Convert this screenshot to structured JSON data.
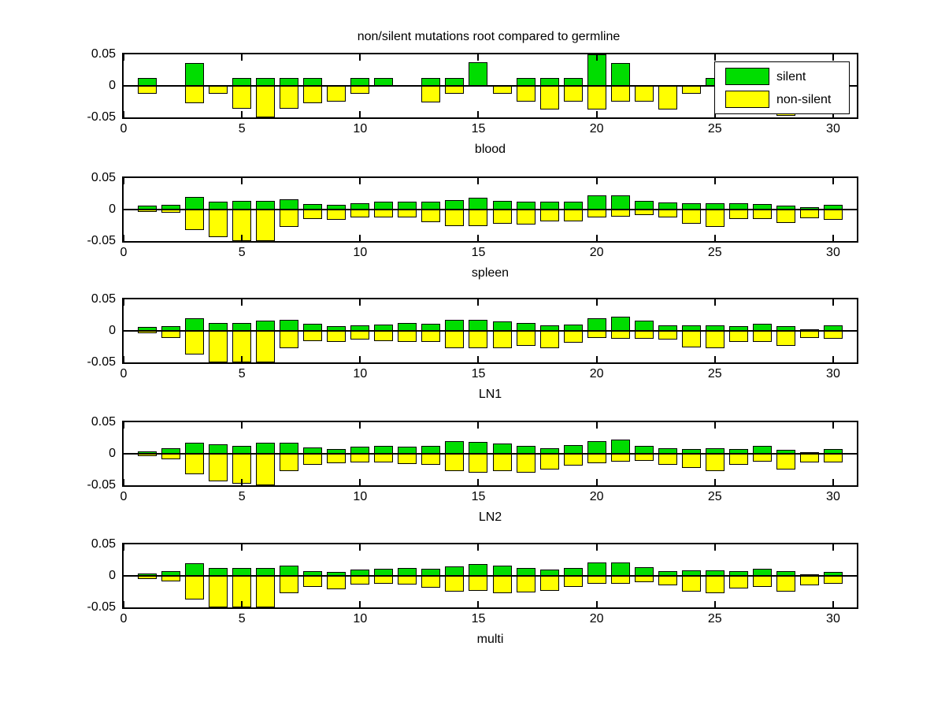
{
  "figure": {
    "title": "non/silent mutations root compared to germline",
    "background": "#ffffff"
  },
  "colors": {
    "silent": "#00dd00",
    "non_silent": "#ffff00",
    "axis": "#000000"
  },
  "legend": {
    "items": [
      {
        "label": "silent",
        "color": "#00dd00"
      },
      {
        "label": "non-silent",
        "color": "#ffff00"
      }
    ]
  },
  "chart_data": [
    {
      "type": "bar",
      "title": "non/silent mutations root compared to germline",
      "xlabel": "blood",
      "ylim": [
        -0.05,
        0.05
      ],
      "yticks": [
        0.05,
        0,
        -0.05
      ],
      "yticklabels": [
        "0.05",
        "0",
        "-0.05"
      ],
      "xticks": [
        0,
        5,
        10,
        15,
        20,
        25,
        30
      ],
      "xticklabels": [
        "0",
        "5",
        "10",
        "15",
        "20",
        "25",
        "30"
      ],
      "x_start": 1,
      "legend_visible": true,
      "series": [
        {
          "name": "silent",
          "values": [
            0.012,
            0,
            0.036,
            0,
            0.012,
            0.012,
            0.012,
            0.012,
            0,
            0.012,
            0.012,
            0,
            0.012,
            0.012,
            0.037,
            0,
            0.012,
            0.012,
            0.012,
            0.05,
            0.036,
            0,
            0,
            0,
            0.012,
            0,
            0.012,
            0,
            0,
            0.012
          ]
        },
        {
          "name": "non-silent",
          "values": [
            -0.013,
            0,
            -0.027,
            -0.013,
            -0.036,
            -0.05,
            -0.036,
            -0.027,
            -0.025,
            -0.012,
            0,
            0,
            -0.026,
            -0.013,
            0,
            -0.013,
            -0.025,
            -0.037,
            -0.025,
            -0.037,
            -0.025,
            -0.025,
            -0.037,
            -0.013,
            0,
            -0.025,
            -0.013,
            -0.048,
            -0.013,
            0
          ]
        }
      ]
    },
    {
      "type": "bar",
      "xlabel": "spleen",
      "ylim": [
        -0.05,
        0.05
      ],
      "yticks": [
        0.05,
        0,
        -0.05
      ],
      "yticklabels": [
        "0.05",
        "0",
        "-0.05"
      ],
      "xticks": [
        0,
        5,
        10,
        15,
        20,
        25,
        30
      ],
      "xticklabels": [
        "0",
        "5",
        "10",
        "15",
        "20",
        "25",
        "30"
      ],
      "x_start": 1,
      "legend_visible": false,
      "series": [
        {
          "name": "silent",
          "values": [
            0.006,
            0.008,
            0.02,
            0.012,
            0.014,
            0.014,
            0.016,
            0.009,
            0.008,
            0.01,
            0.012,
            0.012,
            0.012,
            0.015,
            0.019,
            0.014,
            0.012,
            0.012,
            0.013,
            0.022,
            0.023,
            0.014,
            0.011,
            0.01,
            0.01,
            0.01,
            0.009,
            0.006,
            0.004,
            0.008
          ]
        },
        {
          "name": "non-silent",
          "values": [
            -0.004,
            -0.005,
            -0.033,
            -0.044,
            -0.05,
            -0.05,
            -0.027,
            -0.015,
            -0.016,
            -0.012,
            -0.013,
            -0.012,
            -0.02,
            -0.026,
            -0.026,
            -0.022,
            -0.024,
            -0.019,
            -0.019,
            -0.012,
            -0.011,
            -0.009,
            -0.013,
            -0.023,
            -0.027,
            -0.015,
            -0.015,
            -0.021,
            -0.014,
            -0.016
          ]
        }
      ]
    },
    {
      "type": "bar",
      "xlabel": "LN1",
      "ylim": [
        -0.05,
        0.05
      ],
      "yticks": [
        0.05,
        0,
        -0.05
      ],
      "yticklabels": [
        "0.05",
        "0",
        "-0.05"
      ],
      "xticks": [
        0,
        5,
        10,
        15,
        20,
        25,
        30
      ],
      "xticklabels": [
        "0",
        "5",
        "10",
        "15",
        "20",
        "25",
        "30"
      ],
      "x_start": 1,
      "legend_visible": false,
      "series": [
        {
          "name": "silent",
          "values": [
            0.006,
            0.008,
            0.02,
            0.012,
            0.013,
            0.016,
            0.018,
            0.011,
            0.008,
            0.009,
            0.01,
            0.012,
            0.011,
            0.017,
            0.018,
            0.015,
            0.012,
            0.009,
            0.01,
            0.02,
            0.022,
            0.016,
            0.009,
            0.009,
            0.009,
            0.008,
            0.011,
            0.007,
            0.003,
            0.009
          ]
        },
        {
          "name": "non-silent",
          "values": [
            -0.004,
            -0.011,
            -0.037,
            -0.05,
            -0.05,
            -0.05,
            -0.028,
            -0.016,
            -0.018,
            -0.014,
            -0.016,
            -0.017,
            -0.018,
            -0.028,
            -0.028,
            -0.027,
            -0.024,
            -0.028,
            -0.019,
            -0.011,
            -0.012,
            -0.013,
            -0.014,
            -0.026,
            -0.027,
            -0.017,
            -0.017,
            -0.024,
            -0.011,
            -0.013
          ]
        }
      ]
    },
    {
      "type": "bar",
      "xlabel": "LN2",
      "ylim": [
        -0.05,
        0.05
      ],
      "yticks": [
        0.05,
        0,
        -0.05
      ],
      "yticklabels": [
        "0.05",
        "0",
        "-0.05"
      ],
      "xticks": [
        0,
        5,
        10,
        15,
        20,
        25,
        30
      ],
      "xticklabels": [
        "0",
        "5",
        "10",
        "15",
        "20",
        "25",
        "30"
      ],
      "x_start": 1,
      "legend_visible": false,
      "series": [
        {
          "name": "silent",
          "values": [
            0.004,
            0.009,
            0.018,
            0.015,
            0.013,
            0.017,
            0.017,
            0.01,
            0.007,
            0.011,
            0.013,
            0.011,
            0.012,
            0.02,
            0.019,
            0.016,
            0.013,
            0.009,
            0.014,
            0.02,
            0.023,
            0.013,
            0.009,
            0.007,
            0.009,
            0.007,
            0.012,
            0.006,
            0.002,
            0.007
          ]
        },
        {
          "name": "non-silent",
          "values": [
            -0.004,
            -0.009,
            -0.032,
            -0.044,
            -0.048,
            -0.05,
            -0.027,
            -0.018,
            -0.015,
            -0.014,
            -0.014,
            -0.016,
            -0.017,
            -0.027,
            -0.03,
            -0.028,
            -0.03,
            -0.025,
            -0.019,
            -0.015,
            -0.013,
            -0.011,
            -0.017,
            -0.023,
            -0.027,
            -0.018,
            -0.013,
            -0.025,
            -0.014,
            -0.014
          ]
        }
      ]
    },
    {
      "type": "bar",
      "xlabel": "multi",
      "ylim": [
        -0.05,
        0.05
      ],
      "yticks": [
        0.05,
        0,
        -0.05
      ],
      "yticklabels": [
        "0.05",
        "0",
        "-0.05"
      ],
      "xticks": [
        0,
        5,
        10,
        15,
        20,
        25,
        30
      ],
      "xticklabels": [
        "0",
        "5",
        "10",
        "15",
        "20",
        "25",
        "30"
      ],
      "x_start": 1,
      "legend_visible": false,
      "series": [
        {
          "name": "silent",
          "values": [
            0.004,
            0.008,
            0.02,
            0.012,
            0.013,
            0.013,
            0.016,
            0.008,
            0.006,
            0.01,
            0.011,
            0.013,
            0.011,
            0.015,
            0.019,
            0.016,
            0.012,
            0.01,
            0.013,
            0.021,
            0.021,
            0.014,
            0.008,
            0.009,
            0.009,
            0.008,
            0.011,
            0.007,
            0.003,
            0.006
          ]
        },
        {
          "name": "non-silent",
          "values": [
            -0.005,
            -0.009,
            -0.037,
            -0.05,
            -0.05,
            -0.05,
            -0.028,
            -0.017,
            -0.021,
            -0.014,
            -0.012,
            -0.014,
            -0.019,
            -0.025,
            -0.024,
            -0.028,
            -0.026,
            -0.024,
            -0.018,
            -0.013,
            -0.012,
            -0.01,
            -0.015,
            -0.025,
            -0.028,
            -0.02,
            -0.017,
            -0.025,
            -0.015,
            -0.013
          ]
        }
      ]
    }
  ],
  "layout_values": {
    "subplot_tops": [
      67,
      224,
      378,
      534,
      689
    ],
    "title_top": 38
  }
}
